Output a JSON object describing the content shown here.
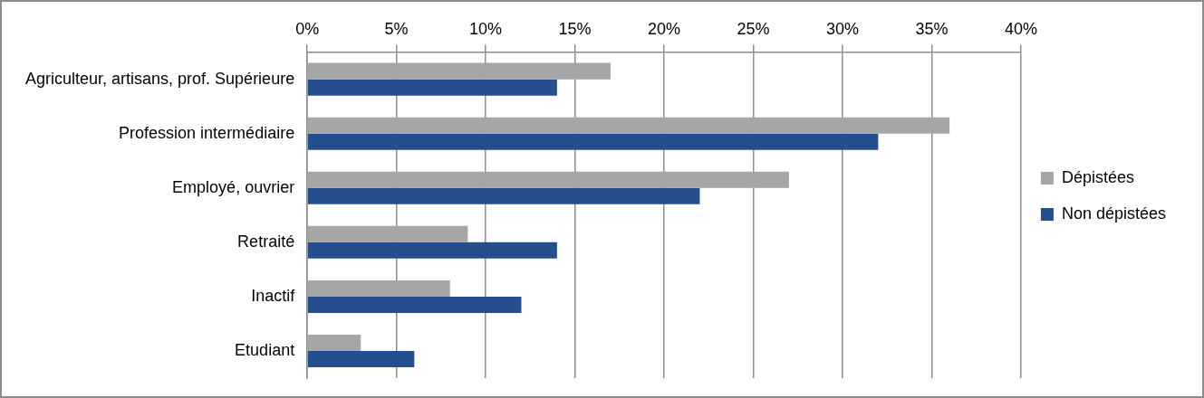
{
  "chart_data": {
    "type": "bar",
    "orientation": "horizontal",
    "categories": [
      "Agriculteur, artisans, prof. Supérieure",
      "Profession intermédiaire",
      "Employé, ouvrier",
      "Retraité",
      "Inactif",
      "Etudiant"
    ],
    "series": [
      {
        "name": "Dépistées",
        "color": "#a6a6a6",
        "values": [
          17,
          36,
          27,
          9,
          8,
          3
        ]
      },
      {
        "name": "Non dépistées",
        "color": "#254f8c",
        "values": [
          14,
          32,
          22,
          14,
          12,
          6
        ]
      }
    ],
    "xlim": [
      0,
      40
    ],
    "xticks": [
      {
        "value": 0,
        "label": "0%"
      },
      {
        "value": 5,
        "label": "5%"
      },
      {
        "value": 10,
        "label": "10%"
      },
      {
        "value": 15,
        "label": "15%"
      },
      {
        "value": 20,
        "label": "20%"
      },
      {
        "value": 25,
        "label": "25%"
      },
      {
        "value": 30,
        "label": "30%"
      },
      {
        "value": 35,
        "label": "35%"
      },
      {
        "value": 40,
        "label": "40%"
      }
    ],
    "grid": true,
    "legend": "right"
  }
}
